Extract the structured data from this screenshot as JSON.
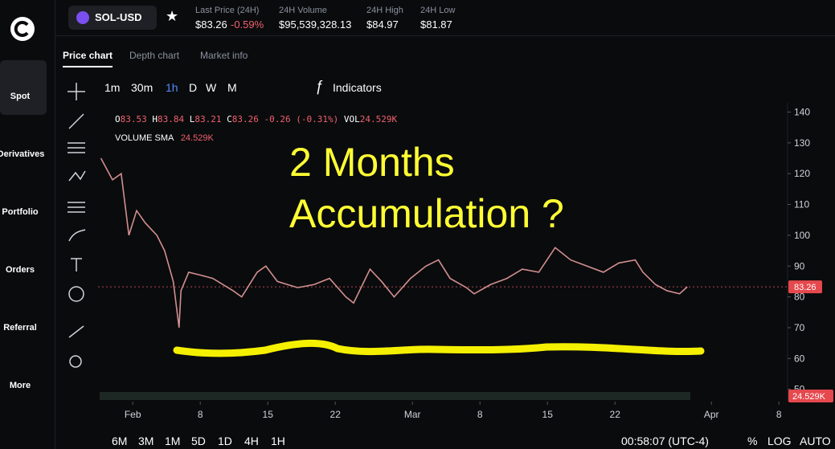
{
  "header": {
    "pair": "SOL-USD",
    "last_price_label": "Last Price (24H)",
    "last_price": "$83.26",
    "change": "-0.59%",
    "volume_label": "24H Volume",
    "volume": "$95,539,328.13",
    "high_label": "24H High",
    "high": "$84.97",
    "low_label": "24H Low",
    "low": "$81.87"
  },
  "sidebar": [
    "Spot",
    "Derivatives",
    "Portfolio",
    "Orders",
    "Referral",
    "More"
  ],
  "tabs": [
    "Price chart",
    "Depth chart",
    "Market info"
  ],
  "intervals": [
    "1m",
    "30m",
    "1h",
    "D",
    "W",
    "M"
  ],
  "indicators": "Indicators",
  "ohlc": [
    {
      "k": "O",
      "v": "83.53"
    },
    {
      "k": "H",
      "v": "83.84"
    },
    {
      "k": "L",
      "v": "83.21"
    },
    {
      "k": "C",
      "v": "83.26"
    },
    {
      "k": "",
      "v": "-0.26 (-0.31%)"
    },
    {
      "k": "VOL",
      "v": "24.529K"
    }
  ],
  "volume_sma": {
    "label": "VOLUME SMA",
    "value": "24.529K"
  },
  "annotation": [
    "2 Months",
    "Accumulation ?"
  ],
  "chart": {
    "type": "line",
    "line_color": "#d28f8f",
    "x": [
      28.7,
      29.9,
      30.8,
      31.6,
      32.4,
      33.3,
      34.5,
      35.3,
      36.2,
      36.8,
      37.0,
      37.8,
      39.1,
      40.3,
      42.4,
      43.3,
      44.9,
      45.8,
      47.0,
      49.1,
      50.8,
      52.4,
      54.1,
      54.9,
      56.6,
      57.8,
      59.1,
      60.8,
      62.4,
      63.7,
      64.9,
      66.6,
      67.4,
      69.1,
      70.8,
      72.4,
      74.1,
      75.8,
      77.4,
      79.1,
      80.8,
      82.4,
      84.1,
      84.9,
      86.2,
      87.4,
      88.7,
      89.5
    ],
    "values": [
      125,
      118,
      120,
      100,
      108,
      104,
      100,
      95,
      85,
      70,
      82,
      88,
      87,
      86,
      82,
      80,
      88,
      90,
      85,
      83,
      84,
      86,
      80,
      78,
      89,
      85,
      80,
      86,
      90,
      92,
      86,
      83,
      81,
      84,
      86,
      89,
      88,
      96,
      92,
      90,
      88,
      91,
      92,
      88,
      84,
      82,
      81,
      83.26
    ],
    "xlim": [
      28.4,
      99.9
    ],
    "ylim": [
      46,
      143
    ],
    "yticks": [
      50,
      60,
      70,
      80,
      90,
      100,
      110,
      120,
      130,
      140
    ],
    "xticks": [
      {
        "value": 32,
        "label": "Feb"
      },
      {
        "value": 39,
        "label": "8"
      },
      {
        "value": 46,
        "label": "15"
      },
      {
        "value": 53,
        "label": "22"
      },
      {
        "value": 61,
        "label": "Mar"
      },
      {
        "value": 68,
        "label": "8"
      },
      {
        "value": 75,
        "label": "15"
      },
      {
        "value": 82,
        "label": "22"
      },
      {
        "value": 92,
        "label": "Apr"
      },
      {
        "value": 99,
        "label": "8"
      }
    ],
    "last_price": {
      "value": 83.26,
      "label": "83.26"
    },
    "volume_tag": "24.529K"
  },
  "footer": {
    "ranges": [
      "6M",
      "3M",
      "1M",
      "5D",
      "1D",
      "4H",
      "1H"
    ],
    "clock": "00:58:07 (UTC-4)",
    "pct": "%",
    "log": "LOG",
    "auto": "AUTO"
  }
}
